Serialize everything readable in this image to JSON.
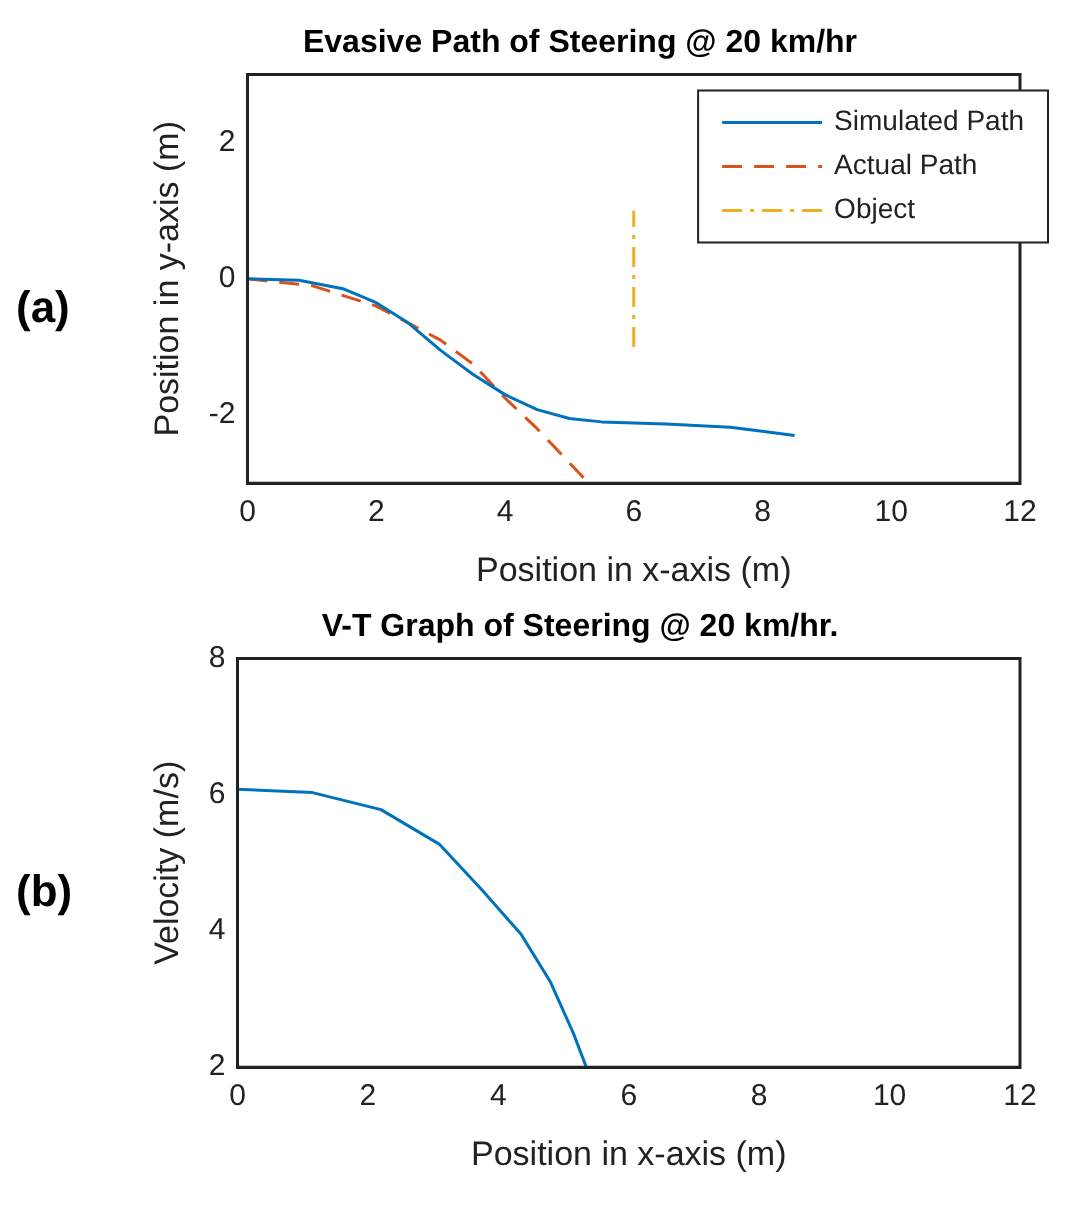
{
  "chart_data": [
    {
      "type": "line",
      "title": "Evasive Path of Steering @ 20 km/hr",
      "xlabel": "Position in x-axis (m)",
      "ylabel": "Position in y-axis (m)",
      "annotations": [
        "(a)"
      ],
      "xlim": [
        0,
        12
      ],
      "xticks": [
        0,
        2,
        4,
        6,
        8,
        10,
        12
      ],
      "ylim": [
        -3,
        3
      ],
      "yticks": [
        -2,
        0,
        2
      ],
      "grid": false,
      "legend": "top right",
      "marker": "none",
      "series": [
        {
          "name": "Simulated Path",
          "color": "#0072bd",
          "line_style": "solid",
          "x": [
            0,
            0.8,
            1.5,
            2.0,
            2.5,
            3.0,
            3.5,
            4.0,
            4.5,
            5.0,
            5.5,
            6.5,
            7.5,
            8.5
          ],
          "values": [
            0,
            -0.02,
            -0.15,
            -0.35,
            -0.65,
            -1.05,
            -1.4,
            -1.7,
            -1.92,
            -2.05,
            -2.1,
            -2.13,
            -2.18,
            -2.3
          ]
        },
        {
          "name": "Actual Path",
          "color": "#d95319",
          "line_style": "dashed",
          "x": [
            0,
            1,
            2,
            3,
            3.5,
            4,
            4.5,
            5.3
          ],
          "values": [
            0,
            -0.1,
            -0.4,
            -0.9,
            -1.25,
            -1.75,
            -2.2,
            -3
          ]
        },
        {
          "name": "Object",
          "color": "#edb120",
          "line_style": "dashdot",
          "x": [
            6,
            6
          ],
          "values": [
            -1,
            1
          ]
        }
      ]
    },
    {
      "type": "line",
      "title": "V-T Graph of Steering @ 20 km/hr.",
      "xlabel": "Position in x-axis (m)",
      "ylabel": "Velocity (m/s)",
      "annotations": [
        "(b)"
      ],
      "xlim": [
        0,
        12
      ],
      "xticks": [
        0,
        2,
        4,
        6,
        8,
        10,
        12
      ],
      "ylim": [
        2,
        8
      ],
      "yticks": [
        2,
        4,
        6,
        8
      ],
      "grid": false,
      "legend": false,
      "marker": "none",
      "series": [
        {
          "color": "#0072bd",
          "x": [
            0,
            1.15,
            2.2,
            3.1,
            3.75,
            4.35,
            4.8,
            5.15,
            5.35
          ],
          "values": [
            6.08,
            6.03,
            5.78,
            5.27,
            4.6,
            3.95,
            3.25,
            2.5,
            2.0
          ]
        }
      ]
    }
  ]
}
